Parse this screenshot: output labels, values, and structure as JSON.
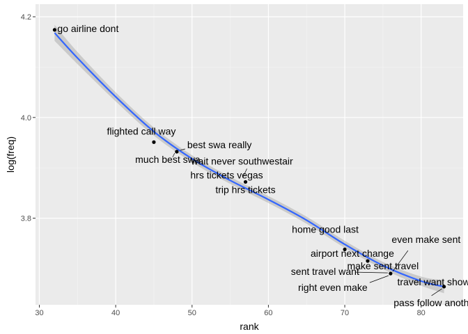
{
  "chart_data": {
    "type": "scatter",
    "title": "",
    "xlabel": "rank",
    "ylabel": "log(freq)",
    "xlim": [
      29.5,
      85.5
    ],
    "ylim": [
      3.628,
      4.225
    ],
    "x_ticks": [
      30,
      40,
      50,
      60,
      70,
      80
    ],
    "y_ticks": [
      3.8,
      4.0,
      4.2
    ],
    "x_tick_labels": [
      "30",
      "40",
      "50",
      "60",
      "70",
      "80"
    ],
    "y_tick_labels": [
      "3.8",
      "4.0",
      "4.2"
    ],
    "grid": true,
    "smooth": {
      "method": "loess",
      "color": "#3366ff",
      "band_color": "#999999",
      "x": [
        32,
        35,
        40,
        45,
        50,
        55,
        60,
        65,
        70,
        75,
        80,
        83
      ],
      "y": [
        4.168,
        4.118,
        4.041,
        3.972,
        3.918,
        3.875,
        3.837,
        3.796,
        3.748,
        3.706,
        3.675,
        3.664
      ],
      "band": [
        0.016,
        0.012,
        0.009,
        0.008,
        0.007,
        0.007,
        0.007,
        0.007,
        0.007,
        0.007,
        0.009,
        0.013
      ]
    },
    "points": [
      {
        "label": "go airline dont",
        "x": 32,
        "y": 4.174
      },
      {
        "label": "flighted call way",
        "x": 45,
        "y": 3.951
      },
      {
        "label": "best swa really",
        "x": 48,
        "y": 3.932
      },
      {
        "label": "much best swa",
        "x": 48,
        "y": 3.932
      },
      {
        "label": "wait never southwestair",
        "x": 57,
        "y": 3.872
      },
      {
        "label": "hrs tickets vegas",
        "x": 57,
        "y": 3.872
      },
      {
        "label": "trip hrs tickets",
        "x": 57,
        "y": 3.872
      },
      {
        "label": "home good last",
        "x": 70,
        "y": 3.738
      },
      {
        "label": "airport next change",
        "x": 73,
        "y": 3.715
      },
      {
        "label": "even make sent",
        "x": 76,
        "y": 3.69
      },
      {
        "label": "make sent travel",
        "x": 76,
        "y": 3.69
      },
      {
        "label": "sent travel want",
        "x": 76,
        "y": 3.69
      },
      {
        "label": "right even make",
        "x": 76,
        "y": 3.69
      },
      {
        "label": "travel want show",
        "x": 83,
        "y": 3.664
      },
      {
        "label": "pass follow another",
        "x": 83,
        "y": 3.664
      }
    ]
  }
}
